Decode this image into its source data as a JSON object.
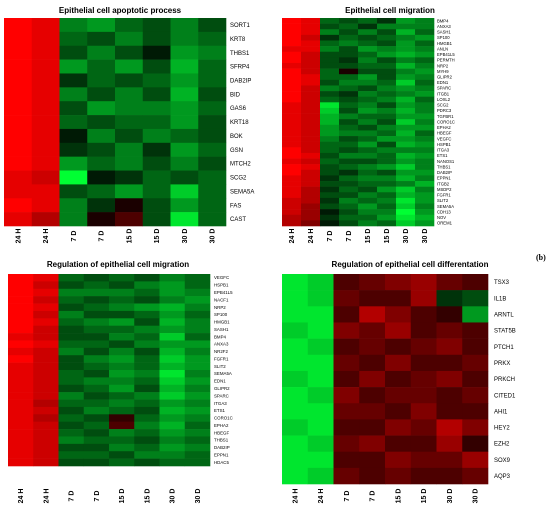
{
  "colors": {
    "low": "#00ff33",
    "mid": "#000000",
    "high": "#ff0000"
  },
  "panel_label": "(b)",
  "chart_data": [
    {
      "type": "heatmap",
      "title": "Epithelial cell apoptotic process",
      "columns": [
        "24 H",
        "24 H",
        "7 D",
        "7 D",
        "15 D",
        "15 D",
        "30 D",
        "30 D"
      ],
      "rows": [
        "SORT1",
        "KRT8",
        "THBS1",
        "SFRP4",
        "DAB2IP",
        "BID",
        "GAS6",
        "KRT18",
        "BOK",
        "GSN",
        "MTCH2",
        "SCG2",
        "SEMA5A",
        "FAS",
        "CAST"
      ],
      "values": [
        [
          1.0,
          0.9,
          -0.5,
          -0.6,
          -0.4,
          -0.3,
          -0.5,
          -0.3
        ],
        [
          1.0,
          0.9,
          -0.4,
          -0.3,
          -0.5,
          -0.3,
          -0.5,
          -0.4
        ],
        [
          1.0,
          0.9,
          -0.3,
          -0.5,
          -0.3,
          -0.1,
          -0.6,
          -0.5
        ],
        [
          1.0,
          0.9,
          -0.6,
          -0.4,
          -0.6,
          -0.3,
          -0.7,
          -0.4
        ],
        [
          1.0,
          0.9,
          -0.2,
          -0.4,
          -0.3,
          -0.4,
          -0.6,
          -0.4
        ],
        [
          1.0,
          0.9,
          -0.5,
          -0.3,
          -0.5,
          -0.3,
          -0.7,
          -0.3
        ],
        [
          1.0,
          0.9,
          -0.3,
          -0.6,
          -0.5,
          -0.5,
          -0.6,
          -0.4
        ],
        [
          1.0,
          0.9,
          -0.4,
          -0.3,
          -0.4,
          -0.4,
          -0.6,
          -0.3
        ],
        [
          1.0,
          0.9,
          -0.1,
          -0.5,
          -0.3,
          -0.5,
          -0.4,
          -0.3
        ],
        [
          1.0,
          0.9,
          -0.2,
          -0.3,
          -0.5,
          -0.2,
          -0.6,
          -0.4
        ],
        [
          1.0,
          0.9,
          -0.6,
          -0.4,
          -0.5,
          -0.3,
          -0.5,
          -0.3
        ],
        [
          0.9,
          0.8,
          -1.0,
          -0.1,
          -0.2,
          -0.4,
          -0.3,
          -0.4
        ],
        [
          0.9,
          0.9,
          -0.3,
          -0.4,
          -0.6,
          -0.4,
          -0.8,
          -0.4
        ],
        [
          1.0,
          0.9,
          -0.5,
          -0.2,
          0.1,
          -0.3,
          -0.6,
          -0.4
        ],
        [
          0.9,
          0.7,
          -0.5,
          0.1,
          0.3,
          -0.3,
          -0.9,
          -0.4
        ]
      ]
    },
    {
      "type": "heatmap",
      "title": "Epithelial cell migration",
      "columns": [
        "24 H",
        "24 H",
        "7 D",
        "7 D",
        "15 D",
        "15 D",
        "30 D",
        "30 D"
      ],
      "rows": [
        "BMP4",
        "ANXA3",
        "SASH1",
        "SP100",
        "HMGB1",
        "ANLN",
        "EPB41L5",
        "PERMTH",
        "NRP2",
        "MYH9",
        "GLIPR2",
        "EDN1",
        "SPARC",
        "ITGB1",
        "LOXL2",
        "SCG2",
        "PDRC3",
        "TGFBR1",
        "CORO1C",
        "EPHA2",
        "HBEGF",
        "VEGFC",
        "HSPB1",
        "ITGA3",
        "ETS1",
        "NANOS1",
        "THBS1",
        "DAB2IP",
        "EPPN1",
        "ITGB2",
        "MSDP2",
        "FGFR1",
        "SLIT2",
        "SEMA5A",
        "CDH13",
        "NOV",
        "OREM1"
      ],
      "values": [
        [
          1.0,
          0.9,
          -0.4,
          -0.3,
          -0.4,
          -0.2,
          -0.6,
          -0.5
        ],
        [
          1.0,
          0.9,
          -0.3,
          -0.4,
          -0.2,
          -0.5,
          -0.5,
          -0.5
        ],
        [
          1.0,
          0.9,
          -0.5,
          -0.3,
          -0.5,
          -0.3,
          -0.7,
          -0.4
        ],
        [
          1.0,
          0.8,
          -0.2,
          -0.4,
          -0.3,
          -0.4,
          -0.5,
          -0.6
        ],
        [
          1.0,
          0.9,
          -0.4,
          -0.5,
          -0.4,
          -0.3,
          -0.6,
          -0.4
        ],
        [
          0.9,
          0.9,
          -0.5,
          -0.3,
          -0.6,
          -0.5,
          -0.6,
          -0.5
        ],
        [
          1.0,
          0.8,
          -0.3,
          -0.3,
          -0.4,
          -0.6,
          -0.7,
          -0.6
        ],
        [
          1.0,
          0.8,
          -0.3,
          -0.2,
          -0.5,
          -0.3,
          -0.5,
          -0.4
        ],
        [
          0.9,
          0.8,
          -0.3,
          -0.3,
          -0.4,
          -0.4,
          -0.7,
          -0.5
        ],
        [
          1.0,
          0.8,
          -0.4,
          0.1,
          -0.3,
          -0.3,
          -0.5,
          -0.6
        ],
        [
          1.0,
          0.9,
          -0.4,
          -0.4,
          -0.6,
          -0.3,
          -0.6,
          -0.5
        ],
        [
          1.0,
          0.9,
          -0.3,
          -0.5,
          -0.5,
          -0.4,
          -0.8,
          -0.4
        ],
        [
          1.0,
          0.8,
          -0.5,
          -0.4,
          -0.3,
          -0.5,
          -0.6,
          -0.5
        ],
        [
          1.0,
          0.8,
          -0.3,
          -0.2,
          -0.5,
          -0.4,
          -0.5,
          -0.6
        ],
        [
          1.0,
          0.8,
          -0.4,
          -0.3,
          -0.4,
          -0.5,
          -0.7,
          -0.4
        ],
        [
          0.9,
          0.8,
          -0.9,
          -0.4,
          -0.5,
          -0.3,
          -0.6,
          -0.5
        ],
        [
          0.9,
          0.8,
          -0.8,
          -0.3,
          -0.6,
          -0.5,
          -0.7,
          -0.5
        ],
        [
          0.9,
          0.8,
          -0.7,
          -0.5,
          -0.4,
          -0.4,
          -0.6,
          -0.6
        ],
        [
          0.9,
          0.8,
          -0.7,
          -0.3,
          -0.5,
          -0.3,
          -0.8,
          -0.5
        ],
        [
          0.9,
          0.8,
          -0.6,
          -0.4,
          -0.3,
          -0.5,
          -0.6,
          -0.6
        ],
        [
          0.9,
          0.8,
          -0.6,
          -0.5,
          -0.5,
          -0.4,
          -0.7,
          -0.4
        ],
        [
          0.9,
          0.8,
          -0.5,
          -0.3,
          -0.4,
          -0.6,
          -0.6,
          -0.5
        ],
        [
          0.9,
          0.8,
          -0.4,
          -0.4,
          -0.6,
          -0.3,
          -0.7,
          -0.6
        ],
        [
          1.0,
          0.8,
          -0.4,
          -0.3,
          -0.4,
          -0.5,
          -0.5,
          -0.5
        ],
        [
          1.0,
          0.9,
          -0.3,
          -0.5,
          -0.5,
          -0.4,
          -0.7,
          -0.6
        ],
        [
          0.9,
          0.8,
          -0.4,
          -0.3,
          -0.3,
          -0.4,
          -0.6,
          -0.5
        ],
        [
          1.0,
          0.9,
          -0.3,
          -0.4,
          -0.5,
          -0.6,
          -0.8,
          -0.5
        ],
        [
          1.0,
          0.8,
          -0.3,
          -0.2,
          -0.4,
          -0.3,
          -0.6,
          -0.6
        ],
        [
          0.9,
          0.8,
          -0.2,
          -0.4,
          -0.5,
          -0.5,
          -0.7,
          -0.5
        ],
        [
          0.9,
          0.8,
          -0.3,
          -0.3,
          -0.4,
          -0.4,
          -0.5,
          -0.7
        ],
        [
          0.9,
          0.7,
          -0.2,
          -0.4,
          -0.3,
          -0.6,
          -0.8,
          -0.5
        ],
        [
          0.9,
          0.7,
          -0.3,
          -0.3,
          -0.5,
          -0.4,
          -0.7,
          -0.6
        ],
        [
          0.8,
          0.7,
          -0.2,
          -0.5,
          -0.4,
          -0.5,
          -0.9,
          -0.6
        ],
        [
          0.8,
          0.6,
          -0.3,
          -0.4,
          -0.6,
          -0.4,
          -0.8,
          -0.5
        ],
        [
          0.8,
          0.6,
          -0.1,
          -0.3,
          -0.5,
          -0.5,
          -1.0,
          -0.6
        ],
        [
          0.7,
          0.6,
          -0.2,
          -0.4,
          -0.4,
          -0.6,
          -0.9,
          -0.7
        ],
        [
          0.7,
          0.5,
          -0.1,
          -0.3,
          -0.5,
          -0.4,
          -0.8,
          -0.6
        ]
      ]
    },
    {
      "type": "heatmap",
      "title": "Regulation of epithelial cell migration",
      "columns": [
        "24 H",
        "24 H",
        "7 D",
        "7 D",
        "15 D",
        "15 D",
        "30 D",
        "30 D"
      ],
      "rows": [
        "VEGFC",
        "HSPB1",
        "EPB41L5",
        "NACF1",
        "NRP2",
        "SP100",
        "HMGB1",
        "SASH1",
        "BMP4",
        "ANXA3",
        "NR2F2",
        "FGFR1",
        "SLIT2",
        "SEMA5A",
        "EDN1",
        "GLIPR2",
        "SPARC",
        "ITGA3",
        "ETS1",
        "CORO1C",
        "EPHA2",
        "HBEGF",
        "THBS1",
        "DAB2IP",
        "EPPN1",
        "HDAC5"
      ],
      "values": [
        [
          1.0,
          0.9,
          -0.4,
          -0.3,
          -0.4,
          -0.3,
          -0.5,
          -0.4
        ],
        [
          1.0,
          0.8,
          -0.3,
          -0.4,
          -0.3,
          -0.5,
          -0.6,
          -0.4
        ],
        [
          1.0,
          0.9,
          -0.5,
          -0.5,
          -0.5,
          -0.4,
          -0.6,
          -0.5
        ],
        [
          1.0,
          0.8,
          -0.4,
          -0.3,
          -0.4,
          -0.3,
          -0.5,
          -0.6
        ],
        [
          1.0,
          0.9,
          -0.3,
          -0.4,
          -0.5,
          -0.6,
          -0.7,
          -0.5
        ],
        [
          1.0,
          0.8,
          -0.5,
          -0.3,
          -0.3,
          -0.4,
          -0.6,
          -0.4
        ],
        [
          1.0,
          0.9,
          -0.4,
          -0.5,
          -0.6,
          -0.3,
          -0.7,
          -0.5
        ],
        [
          1.0,
          0.8,
          -0.3,
          -0.4,
          -0.4,
          -0.5,
          -0.6,
          -0.5
        ],
        [
          0.9,
          0.8,
          -0.3,
          -0.3,
          -0.5,
          -0.4,
          -0.8,
          -0.4
        ],
        [
          1.0,
          0.9,
          -0.4,
          -0.4,
          -0.3,
          -0.5,
          -0.6,
          -0.6
        ],
        [
          0.9,
          0.8,
          -0.5,
          -0.3,
          -0.5,
          -0.3,
          -0.7,
          -0.5
        ],
        [
          1.0,
          0.8,
          -0.3,
          -0.5,
          -0.6,
          -0.4,
          -0.8,
          -0.6
        ],
        [
          0.9,
          0.8,
          -0.3,
          -0.4,
          -0.5,
          -0.4,
          -0.7,
          -0.6
        ],
        [
          0.9,
          0.8,
          -0.4,
          -0.3,
          -0.6,
          -0.5,
          -0.9,
          -0.5
        ],
        [
          0.9,
          0.8,
          -0.4,
          -0.5,
          -0.5,
          -0.4,
          -0.8,
          -0.6
        ],
        [
          0.9,
          0.8,
          -0.3,
          -0.4,
          -0.6,
          -0.3,
          -0.7,
          -0.5
        ],
        [
          0.9,
          0.8,
          -0.5,
          -0.3,
          -0.4,
          -0.5,
          -0.8,
          -0.6
        ],
        [
          0.9,
          0.7,
          -0.4,
          -0.4,
          -0.5,
          -0.4,
          -0.6,
          -0.5
        ],
        [
          0.9,
          0.8,
          -0.3,
          -0.5,
          -0.4,
          -0.3,
          -0.7,
          -0.6
        ],
        [
          0.9,
          0.7,
          -0.4,
          -0.3,
          0.2,
          -0.4,
          -0.6,
          -0.5
        ],
        [
          0.9,
          0.8,
          -0.3,
          -0.4,
          0.3,
          -0.5,
          -0.7,
          -0.4
        ],
        [
          0.9,
          0.8,
          -0.4,
          -0.3,
          -0.5,
          -0.4,
          -0.6,
          -0.5
        ],
        [
          0.9,
          0.8,
          -0.5,
          -0.4,
          -0.4,
          -0.3,
          -0.5,
          -0.4
        ],
        [
          0.9,
          0.8,
          -0.3,
          -0.3,
          -0.5,
          -0.4,
          -0.6,
          -0.5
        ],
        [
          0.9,
          0.8,
          -0.4,
          -0.4,
          -0.3,
          -0.5,
          -0.5,
          -0.4
        ],
        [
          0.9,
          0.8,
          -0.3,
          -0.3,
          -0.4,
          -0.3,
          -0.4,
          -0.4
        ]
      ]
    },
    {
      "type": "heatmap",
      "title": "Regulation of epithelial cell differentation",
      "columns": [
        "24 H",
        "24 H",
        "7 D",
        "7 D",
        "15 D",
        "15 D",
        "30 D",
        "30 D"
      ],
      "rows": [
        "TSX3",
        "IL1B",
        "ARNTL",
        "STAT5B",
        "PTCH1",
        "PRKX",
        "PRKCH",
        "CITED1",
        "AHI1",
        "HEY2",
        "EZH2",
        "SOX9",
        "AQP3"
      ],
      "values": [
        [
          -0.9,
          -0.8,
          0.3,
          0.4,
          0.5,
          0.6,
          0.4,
          0.3
        ],
        [
          -0.9,
          -0.8,
          0.4,
          0.3,
          0.3,
          0.6,
          -0.2,
          -0.3
        ],
        [
          -0.9,
          -0.9,
          0.3,
          0.7,
          0.5,
          0.3,
          0.2,
          -0.6
        ],
        [
          -0.8,
          -0.9,
          0.5,
          0.4,
          0.6,
          0.3,
          0.4,
          0.3
        ],
        [
          -0.9,
          -0.8,
          0.3,
          0.4,
          0.3,
          0.4,
          0.5,
          0.3
        ],
        [
          -0.9,
          -0.9,
          0.4,
          0.3,
          0.5,
          0.3,
          0.3,
          0.4
        ],
        [
          -0.8,
          -0.9,
          0.3,
          0.5,
          0.3,
          0.4,
          0.5,
          0.3
        ],
        [
          -0.9,
          -0.8,
          0.5,
          0.3,
          0.4,
          0.4,
          0.3,
          0.4
        ],
        [
          -0.9,
          -0.9,
          0.4,
          0.4,
          0.3,
          0.5,
          0.3,
          0.3
        ],
        [
          -0.8,
          -0.9,
          0.3,
          0.3,
          0.5,
          0.4,
          0.7,
          0.5
        ],
        [
          -0.9,
          -0.8,
          0.4,
          0.5,
          0.3,
          0.3,
          0.6,
          0.2
        ],
        [
          -0.9,
          -0.9,
          0.3,
          0.3,
          0.5,
          0.4,
          0.4,
          0.6
        ],
        [
          -0.9,
          -0.8,
          0.4,
          0.3,
          0.4,
          0.3,
          0.3,
          0.4
        ]
      ]
    }
  ]
}
